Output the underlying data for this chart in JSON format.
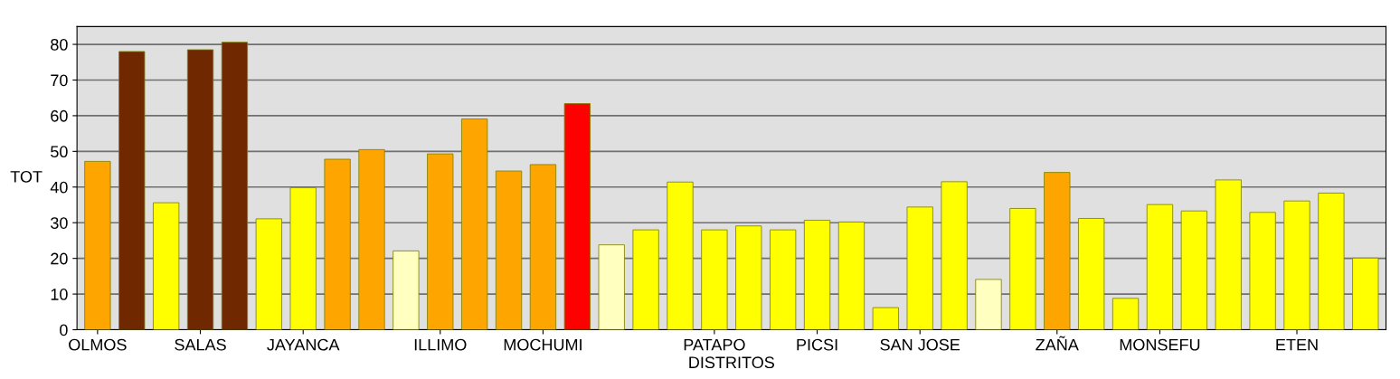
{
  "chart_data": {
    "type": "bar",
    "xlabel": "DISTRITOS",
    "ylabel": "TOT",
    "categories": [
      "OLMOS",
      null,
      null,
      "SALAS",
      null,
      null,
      "JAYANCA",
      null,
      null,
      null,
      "ILLIMO",
      null,
      null,
      "MOCHUMI",
      null,
      null,
      null,
      null,
      "PATAPO",
      null,
      null,
      "PICSI",
      null,
      null,
      "SAN JOSE",
      null,
      null,
      null,
      "ZAÑA",
      null,
      null,
      "MONSEFU",
      null,
      null,
      null,
      "ETEN",
      null,
      null
    ],
    "values": [
      47.2,
      78,
      35.6,
      78.5,
      80.6,
      31.1,
      39.8,
      47.8,
      50.5,
      22.1,
      49.3,
      59.1,
      44.5,
      46.3,
      63.4,
      23.8,
      28.0,
      41.4,
      28.0,
      29.1,
      28.0,
      30.7,
      30.2,
      6.2,
      34.4,
      41.5,
      14.1,
      34.0,
      44.1,
      31.2,
      8.8,
      35.1,
      33.3,
      42.0,
      32.9,
      36.1,
      38.3,
      20.1
    ],
    "colors": [
      "#ffa500",
      "#702800",
      "#ffff00",
      "#702800",
      "#702800",
      "#ffff00",
      "#ffff00",
      "#ffa500",
      "#ffa500",
      "#ffffc0",
      "#ffa500",
      "#ffa500",
      "#ffa500",
      "#ffa500",
      "#ff0000",
      "#ffffc0",
      "#ffff00",
      "#ffff00",
      "#ffff00",
      "#ffff00",
      "#ffff00",
      "#ffff00",
      "#ffff00",
      "#ffff00",
      "#ffff00",
      "#ffff00",
      "#ffffc0",
      "#ffff00",
      "#ffa500",
      "#ffff00",
      "#ffff00",
      "#ffff00",
      "#ffff00",
      "#ffff00",
      "#ffff00",
      "#ffff00",
      "#ffff00",
      "#ffff00"
    ],
    "ylim": [
      0,
      85
    ],
    "yticks": [
      0,
      10,
      20,
      30,
      40,
      50,
      60,
      70,
      80
    ],
    "grid": "y",
    "legend": false
  }
}
